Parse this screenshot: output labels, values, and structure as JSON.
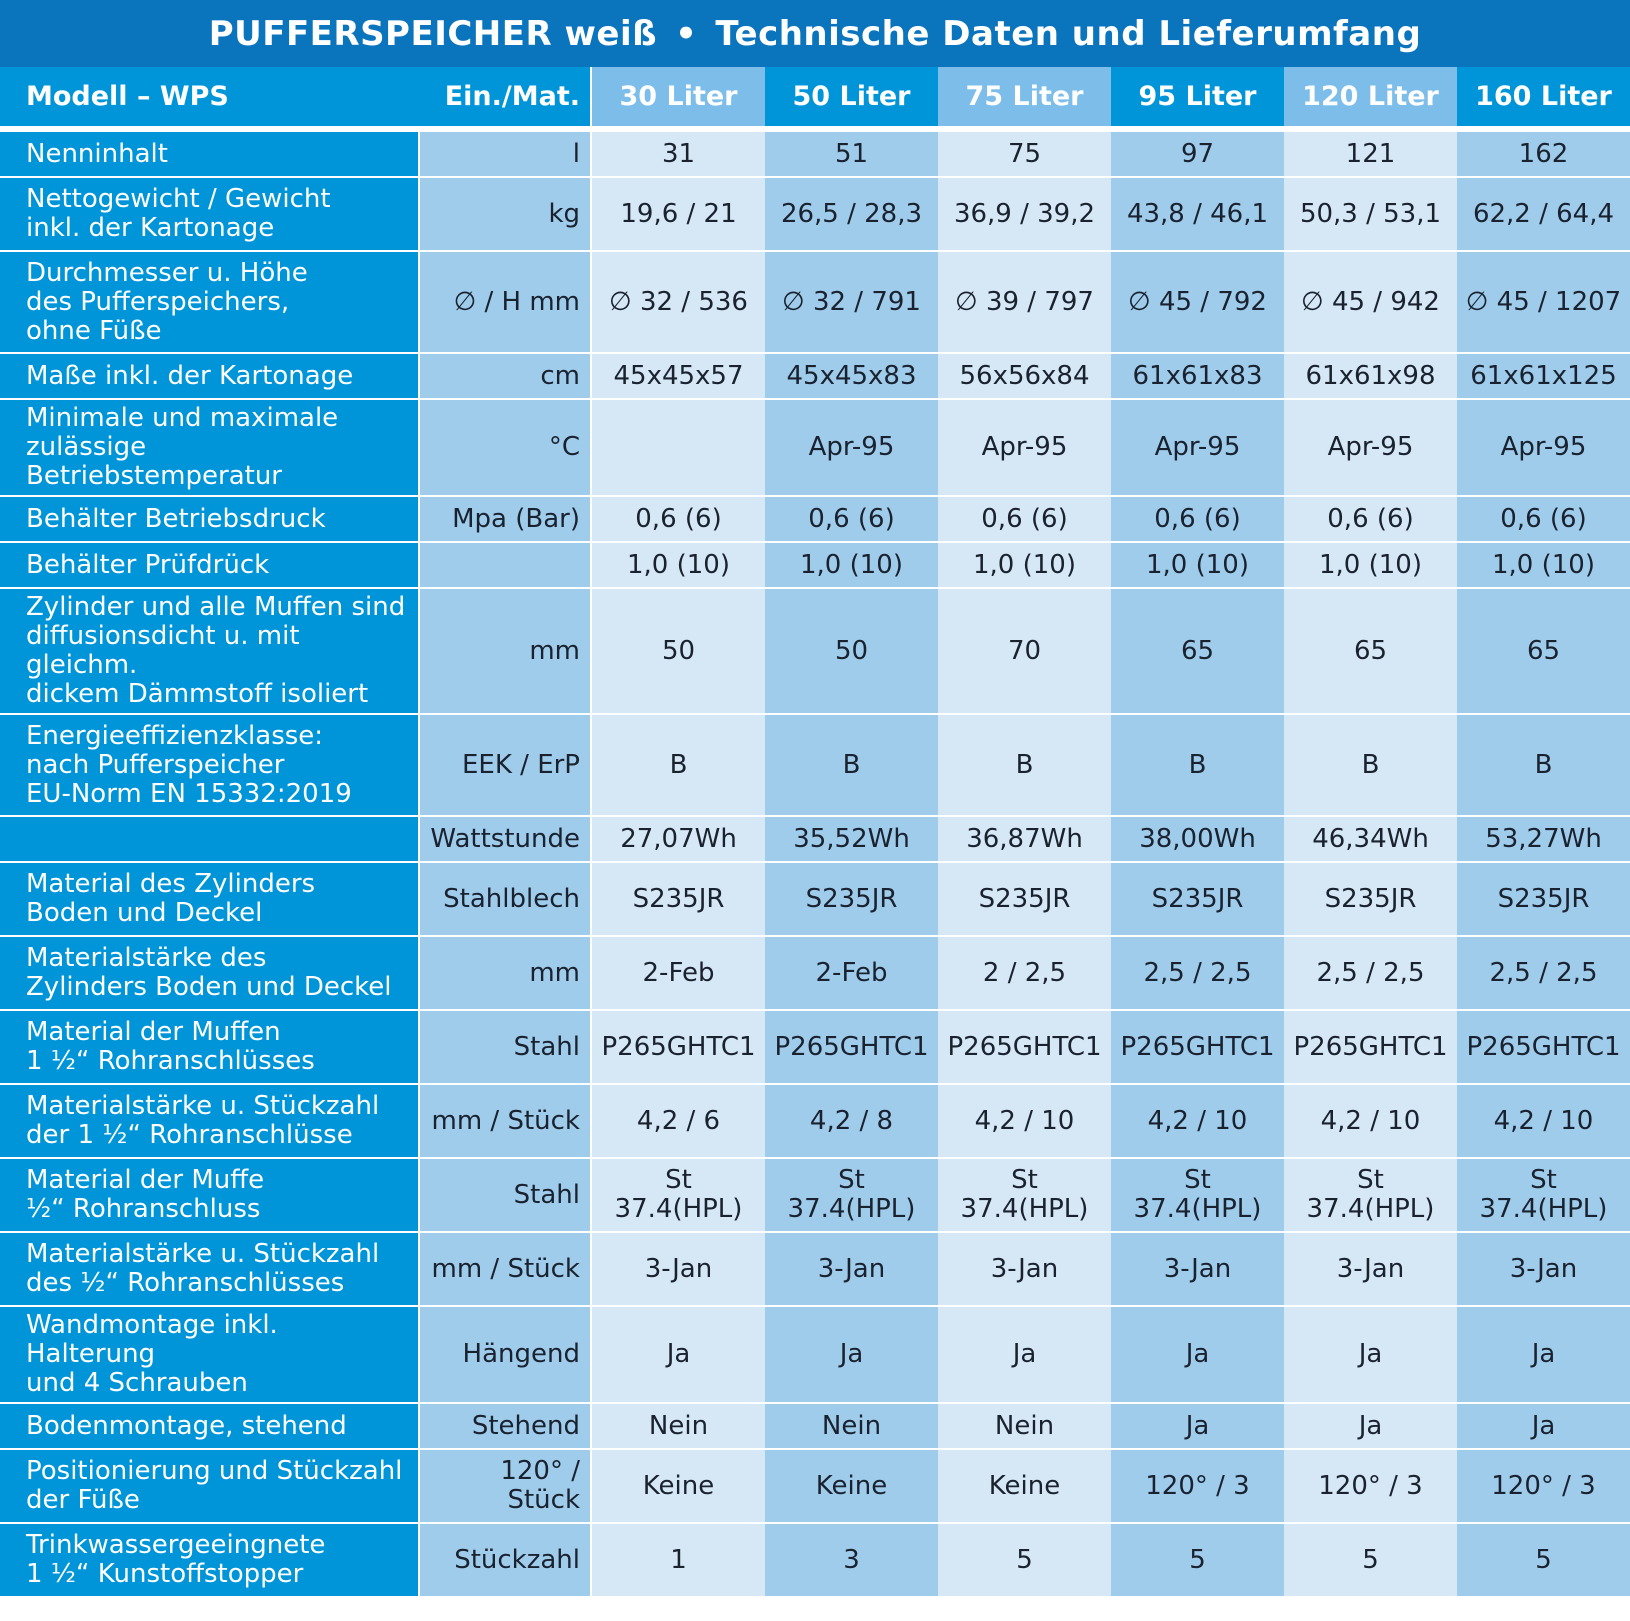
{
  "title": {
    "left": "PUFFERSPEICHER weiß",
    "separator": "•",
    "right": "Technische Daten und Lieferumfang"
  },
  "header": {
    "model_label": "Modell – WPS",
    "unit_label": "Ein./Mat.",
    "columns": [
      "30 Liter",
      "50 Liter",
      "75 Liter",
      "95 Liter",
      "120 Liter",
      "160 Liter"
    ]
  },
  "rows": [
    {
      "label": "Nenninhalt",
      "unit": "l",
      "values": [
        "31",
        "51",
        "75",
        "97",
        "121",
        "162"
      ]
    },
    {
      "label": "Nettogewicht / Gewicht\ninkl. der Kartonage",
      "unit": "kg",
      "values": [
        "19,6 / 21",
        "26,5 / 28,3",
        "36,9 / 39,2",
        "43,8 / 46,1",
        "50,3 / 53,1",
        "62,2 / 64,4"
      ]
    },
    {
      "label": "Durchmesser u. Höhe\ndes Pufferspeichers,\nohne Füße",
      "unit": "∅ / H mm",
      "values": [
        "∅ 32 / 536",
        "∅ 32 / 791",
        "∅ 39 / 797",
        "∅ 45 / 792",
        "∅ 45 / 942",
        "∅ 45 / 1207"
      ]
    },
    {
      "label": "Maße inkl. der Kartonage",
      "unit": "cm",
      "values": [
        "45x45x57",
        "45x45x83",
        "56x56x84",
        "61x61x83",
        "61x61x98",
        "61x61x125"
      ]
    },
    {
      "label": "Minimale und maximale\nzulässige Betriebstemperatur",
      "unit": "°C",
      "values": [
        "",
        "Apr-95",
        "Apr-95",
        "Apr-95",
        "Apr-95",
        "Apr-95"
      ]
    },
    {
      "label": "Behälter Betriebsdruck",
      "unit": "Mpa (Bar)",
      "values": [
        "0,6 (6)",
        "0,6 (6)",
        "0,6 (6)",
        "0,6 (6)",
        "0,6 (6)",
        "0,6 (6)"
      ]
    },
    {
      "label": "Behälter Prüfdrück",
      "unit": "",
      "values": [
        "1,0 (10)",
        "1,0 (10)",
        "1,0 (10)",
        "1,0 (10)",
        "1,0 (10)",
        "1,0 (10)"
      ]
    },
    {
      "label": "Zylinder und alle Muffen sind\ndiffusionsdicht u. mit gleichm.\ndickem Dämmstoff isoliert",
      "unit": "mm",
      "values": [
        "50",
        "50",
        "70",
        "65",
        "65",
        "65"
      ]
    },
    {
      "label": "Energieeffizienzklasse:\nnach Pufferspeicher\nEU-Norm EN 15332:2019",
      "unit": "EEK / ErP",
      "values": [
        "B",
        "B",
        "B",
        "B",
        "B",
        "B"
      ]
    },
    {
      "label": "",
      "unit": "Wattstunde",
      "values": [
        "27,07Wh",
        "35,52Wh",
        "36,87Wh",
        "38,00Wh",
        "46,34Wh",
        "53,27Wh"
      ]
    },
    {
      "label": "Material des Zylinders\nBoden und Deckel",
      "unit": "Stahlblech",
      "values": [
        "S235JR",
        "S235JR",
        "S235JR",
        "S235JR",
        "S235JR",
        "S235JR"
      ]
    },
    {
      "label": "Materialstärke des\nZylinders Boden und Deckel",
      "unit": "mm",
      "values": [
        "2-Feb",
        "2-Feb",
        "2 / 2,5",
        "2,5 / 2,5",
        "2,5 / 2,5",
        "2,5 / 2,5"
      ]
    },
    {
      "label": "Material der Muffen\n1 ½“ Rohranschlüsses",
      "unit": "Stahl",
      "values": [
        "P265GHTC1",
        "P265GHTC1",
        "P265GHTC1",
        "P265GHTC1",
        "P265GHTC1",
        "P265GHTC1"
      ]
    },
    {
      "label": "Materialstärke u. Stückzahl\nder 1 ½“ Rohranschlüsse",
      "unit": "mm / Stück",
      "values": [
        "4,2 / 6",
        "4,2 / 8",
        "4,2 / 10",
        "4,2 / 10",
        "4,2 / 10",
        "4,2 / 10"
      ]
    },
    {
      "label": "Material der Muffe\n½“ Rohranschluss",
      "unit": "Stahl",
      "values": [
        "St\n37.4(HPL)",
        "St\n37.4(HPL)",
        "St\n37.4(HPL)",
        "St\n37.4(HPL)",
        "St\n37.4(HPL)",
        "St\n37.4(HPL)"
      ]
    },
    {
      "label": "Materialstärke u. Stückzahl\ndes ½“ Rohranschlüsses",
      "unit": "mm / Stück",
      "values": [
        "3-Jan",
        "3-Jan",
        "3-Jan",
        "3-Jan",
        "3-Jan",
        "3-Jan"
      ]
    },
    {
      "label": "Wandmontage inkl. Halterung\nund 4 Schrauben",
      "unit": "Hängend",
      "values": [
        "Ja",
        "Ja",
        "Ja",
        "Ja",
        "Ja",
        "Ja"
      ]
    },
    {
      "label": "Bodenmontage, stehend",
      "unit": "Stehend",
      "values": [
        "Nein",
        "Nein",
        "Nein",
        "Ja",
        "Ja",
        "Ja"
      ]
    },
    {
      "label": "Positionierung und Stückzahl\nder Füße",
      "unit": "120° / Stück",
      "values": [
        "Keine",
        "Keine",
        "Keine",
        "120° / 3",
        "120° / 3",
        "120° / 3"
      ]
    },
    {
      "label": "Trinkwassergeeingnete\n1 ½“ Kunstoffstopper",
      "unit": "Stückzahl",
      "values": [
        "1",
        "3",
        "5",
        "5",
        "5",
        "5"
      ]
    }
  ]
}
